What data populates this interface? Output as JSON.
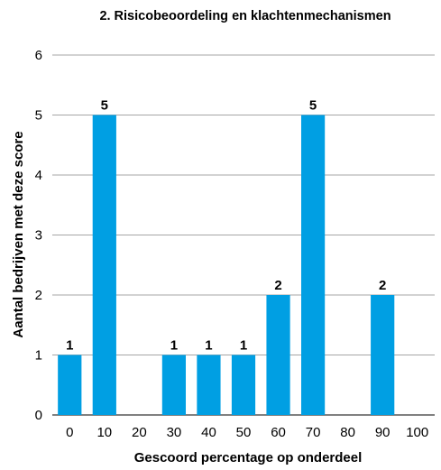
{
  "chart_data": {
    "type": "bar",
    "title": "2. Risicobeoordeling en klachtenmechanismen",
    "xlabel": "Gescoord percentage op onderdeel",
    "ylabel": "Aantal bedrijven met deze score",
    "categories": [
      "0",
      "10",
      "20",
      "30",
      "40",
      "50",
      "60",
      "70",
      "80",
      "90",
      "100"
    ],
    "values": [
      1,
      5,
      0,
      1,
      1,
      1,
      2,
      5,
      0,
      2,
      0
    ],
    "data_labels": [
      "1",
      "5",
      "",
      "1",
      "1",
      "1",
      "2",
      "5",
      "",
      "2",
      ""
    ],
    "y_ticks": [
      "0",
      "1",
      "2",
      "3",
      "4",
      "5",
      "6"
    ],
    "ylim": [
      0,
      6
    ],
    "grid": true,
    "bar_color": "#009fe3",
    "grid_color": "#a6a6a6"
  }
}
